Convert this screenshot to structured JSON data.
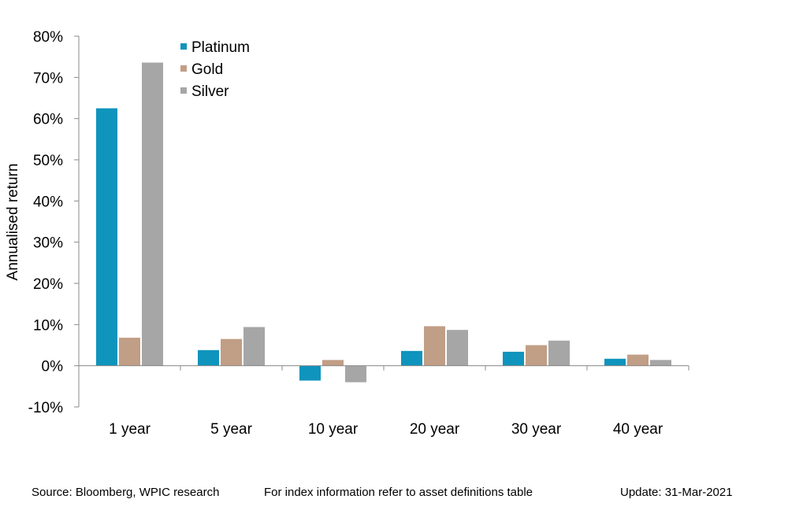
{
  "chart_data": {
    "type": "bar",
    "title": "",
    "xlabel": "",
    "ylabel": "Annualised return",
    "categories": [
      "1 year",
      "5 year",
      "10 year",
      "20 year",
      "30 year",
      "40 year"
    ],
    "series": [
      {
        "name": "Platinum",
        "color": "#0F94BD",
        "values": [
          62.5,
          3.8,
          -3.6,
          3.6,
          3.4,
          1.7
        ]
      },
      {
        "name": "Gold",
        "color": "#C19E86",
        "values": [
          6.8,
          6.5,
          1.4,
          9.6,
          5.0,
          2.7
        ]
      },
      {
        "name": "Silver",
        "color": "#A6A6A6",
        "values": [
          73.6,
          9.4,
          -4.0,
          8.7,
          6.1,
          1.4
        ]
      }
    ],
    "ylim": [
      -10,
      80
    ],
    "yticks": [
      -10,
      0,
      10,
      20,
      30,
      40,
      50,
      60,
      70,
      80
    ],
    "ytick_labels": [
      "-10%",
      "0%",
      "10%",
      "20%",
      "30%",
      "40%",
      "50%",
      "60%",
      "70%",
      "80%"
    ],
    "grid": false,
    "legend_position": "top-left"
  },
  "footer": {
    "source": "Source: Bloomberg, WPIC research",
    "note": "For index information refer to asset definitions table",
    "update": "Update: 31-Mar-2021"
  }
}
